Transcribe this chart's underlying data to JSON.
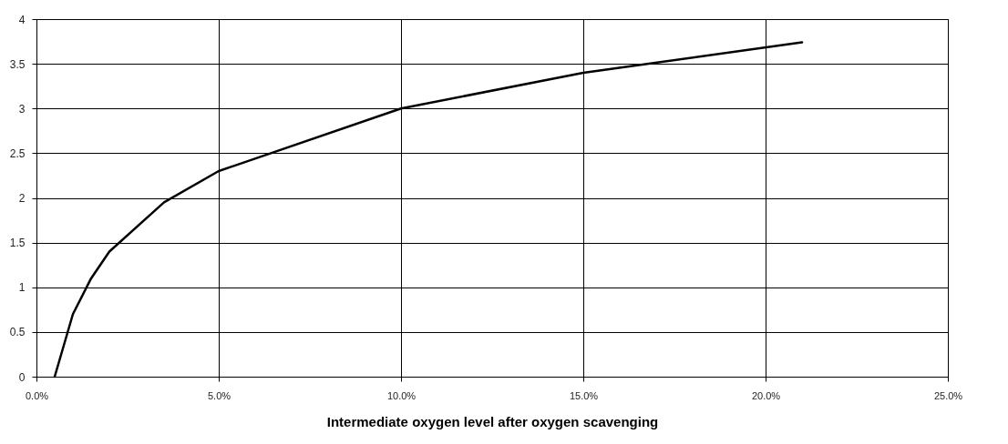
{
  "chart_data": {
    "type": "line",
    "xlabel": "Intermediate oxygen level after oxygen scavenging",
    "x": [
      0.5,
      1.0,
      1.5,
      2.0,
      3.5,
      5,
      10,
      15,
      21
    ],
    "series": [
      {
        "color": "#000000",
        "values": [
          0,
          0.7,
          1.1,
          1.4,
          1.95,
          2.3,
          3.0,
          3.4,
          3.74
        ]
      }
    ],
    "xlim": [
      0,
      25
    ],
    "xticks": [
      {
        "value": 0,
        "label": "0.0%"
      },
      {
        "value": 5,
        "label": "5.0%"
      },
      {
        "value": 10,
        "label": "10.0%"
      },
      {
        "value": 15,
        "label": "15.0%"
      },
      {
        "value": 20,
        "label": "20.0%"
      },
      {
        "value": 25,
        "label": "25.0%"
      }
    ],
    "ylim": [
      0,
      4
    ],
    "yticks": [
      0,
      0.5,
      1,
      1.5,
      2,
      2.5,
      3,
      3.5,
      4
    ],
    "grid": true,
    "legend": false,
    "marker": "none",
    "line_style": "solid"
  }
}
